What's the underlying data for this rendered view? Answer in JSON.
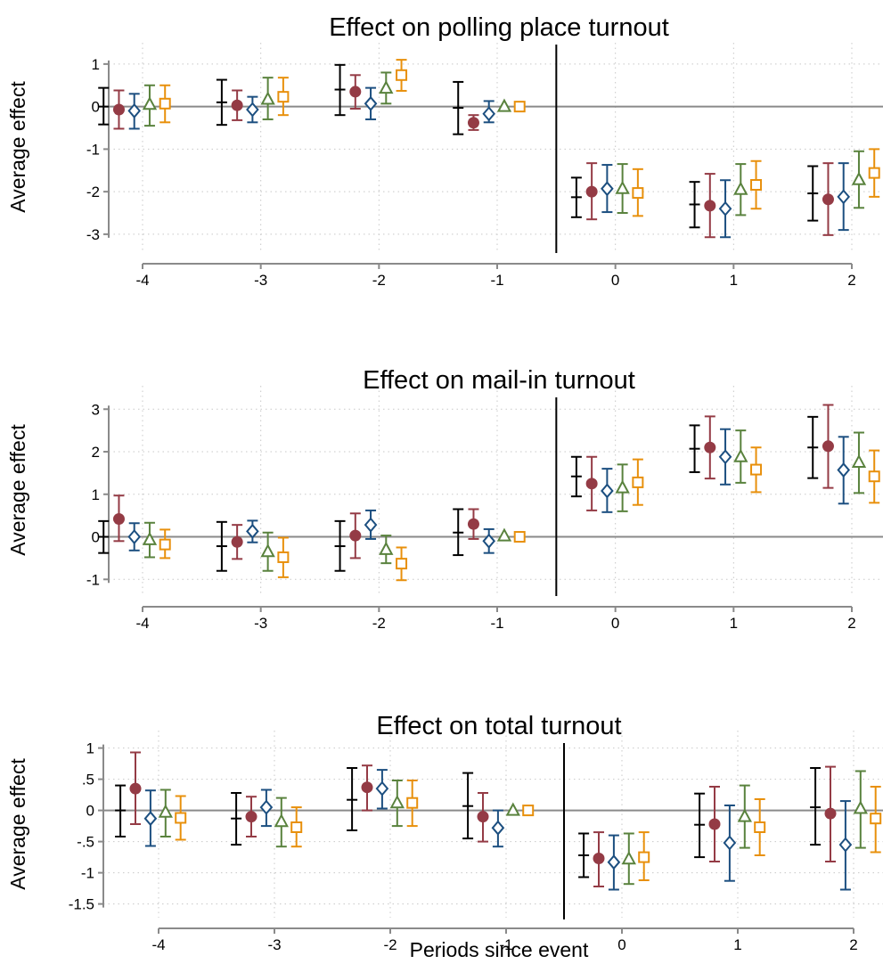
{
  "xlabel": "Periods since event",
  "series_styles": [
    {
      "color": "#000000",
      "marker": "hline"
    },
    {
      "color": "#943b45",
      "marker": "circle"
    },
    {
      "color": "#1c4f80",
      "marker": "diamond"
    },
    {
      "color": "#59823d",
      "marker": "triangle"
    },
    {
      "color": "#e8900c",
      "marker": "square"
    }
  ],
  "chart_data": [
    {
      "type": "scatter",
      "title": "Effect on polling place turnout",
      "ylabel": "Average effect",
      "xlabel": "",
      "x_ticks": [
        -4,
        -3,
        -2,
        -1,
        0,
        1,
        2
      ],
      "y_ticks": [
        1,
        0,
        -1,
        -2,
        -3
      ],
      "y_tick_labels": [
        "1",
        "0",
        "-1",
        "-2",
        "-3"
      ],
      "ylim": [
        -3.4,
        1.5
      ],
      "event_line_x": -0.5,
      "series_offsets": [
        -0.33,
        -0.2,
        -0.07,
        0.06,
        0.19
      ],
      "estimates": [
        [
          0.0,
          0.1,
          0.4,
          -0.03,
          -2.13,
          -2.3,
          -2.04
        ],
        [
          -0.07,
          0.03,
          0.35,
          -0.38,
          -2.0,
          -2.33,
          -2.18
        ],
        [
          -0.1,
          -0.07,
          0.07,
          -0.17,
          -1.93,
          -2.4,
          -2.12
        ],
        [
          0.05,
          0.17,
          0.43,
          0.0,
          -1.93,
          -1.95,
          -1.72
        ],
        [
          0.07,
          0.23,
          0.74,
          0.0,
          -2.03,
          -1.84,
          -1.56
        ]
      ],
      "ci_lower": [
        [
          -0.42,
          -0.43,
          -0.2,
          -0.65,
          -2.6,
          -2.84,
          -2.68
        ],
        [
          -0.52,
          -0.32,
          -0.05,
          -0.55,
          -2.65,
          -3.07,
          -3.02
        ],
        [
          -0.52,
          -0.37,
          -0.3,
          -0.37,
          -2.48,
          -3.07,
          -2.9
        ],
        [
          -0.45,
          -0.3,
          0.07,
          0.0,
          -2.5,
          -2.55,
          -2.38
        ],
        [
          -0.37,
          -0.2,
          0.37,
          0.0,
          -2.57,
          -2.4,
          -2.12
        ]
      ],
      "ci_upper": [
        [
          0.44,
          0.63,
          0.98,
          0.58,
          -1.67,
          -1.77,
          -1.4
        ],
        [
          0.38,
          0.38,
          0.74,
          -0.2,
          -1.33,
          -1.58,
          -1.33
        ],
        [
          0.3,
          0.23,
          0.44,
          0.13,
          -1.37,
          -1.73,
          -1.33
        ],
        [
          0.5,
          0.68,
          0.8,
          0.0,
          -1.35,
          -1.35,
          -1.05
        ],
        [
          0.5,
          0.68,
          1.1,
          0.0,
          -1.47,
          -1.28,
          -1.0
        ]
      ]
    },
    {
      "type": "scatter",
      "title": "Effect on mail-in turnout",
      "ylabel": "Average effect",
      "xlabel": "",
      "x_ticks": [
        -4,
        -3,
        -2,
        -1,
        0,
        1,
        2
      ],
      "y_ticks": [
        3,
        2,
        1,
        0,
        -1
      ],
      "y_tick_labels": [
        "3",
        "2",
        "1",
        "0",
        "-1"
      ],
      "ylim": [
        -1.35,
        3.55
      ],
      "event_line_x": -0.5,
      "series_offsets": [
        -0.33,
        -0.2,
        -0.07,
        0.06,
        0.19
      ],
      "estimates": [
        [
          0.0,
          -0.22,
          -0.22,
          0.1,
          1.42,
          2.07,
          2.1
        ],
        [
          0.42,
          -0.12,
          0.03,
          0.3,
          1.25,
          2.1,
          2.13
        ],
        [
          0.0,
          0.13,
          0.28,
          -0.1,
          1.08,
          1.88,
          1.57
        ],
        [
          -0.07,
          -0.35,
          -0.3,
          0.02,
          1.15,
          1.88,
          1.75
        ],
        [
          -0.18,
          -0.48,
          -0.63,
          0.0,
          1.28,
          1.58,
          1.42
        ]
      ],
      "ci_lower": [
        [
          -0.38,
          -0.8,
          -0.8,
          -0.43,
          0.95,
          1.52,
          1.38
        ],
        [
          -0.1,
          -0.52,
          -0.5,
          -0.05,
          0.62,
          1.37,
          1.15
        ],
        [
          -0.32,
          -0.13,
          -0.05,
          -0.38,
          0.58,
          1.23,
          0.78
        ],
        [
          -0.48,
          -0.8,
          -0.62,
          0.02,
          0.6,
          1.27,
          1.03
        ],
        [
          -0.5,
          -0.95,
          -1.02,
          0.0,
          0.75,
          1.05,
          0.8
        ]
      ],
      "ci_upper": [
        [
          0.37,
          0.35,
          0.37,
          0.65,
          1.88,
          2.62,
          2.82
        ],
        [
          0.97,
          0.28,
          0.55,
          0.65,
          1.88,
          2.83,
          3.1
        ],
        [
          0.32,
          0.38,
          0.62,
          0.18,
          1.6,
          2.53,
          2.35
        ],
        [
          0.33,
          0.1,
          0.03,
          0.02,
          1.7,
          2.5,
          2.45
        ],
        [
          0.17,
          -0.02,
          -0.25,
          0.0,
          1.82,
          2.1,
          2.03
        ]
      ]
    },
    {
      "type": "scatter",
      "title": "Effect on total turnout",
      "ylabel": "Average effect",
      "xlabel": "Periods since event",
      "x_ticks": [
        -4,
        -3,
        -2,
        -1,
        0,
        1,
        2
      ],
      "y_ticks": [
        1,
        0.5,
        0,
        -0.5,
        -1,
        -1.5
      ],
      "y_tick_labels": [
        "1",
        ".5",
        "0",
        "-.5",
        "-1",
        "-1.5"
      ],
      "ylim": [
        -1.72,
        1.28
      ],
      "event_line_x": -0.5,
      "series_offsets": [
        -0.33,
        -0.2,
        -0.07,
        0.06,
        0.19
      ],
      "estimates": [
        [
          0.0,
          -0.13,
          0.17,
          0.07,
          -0.72,
          -0.23,
          0.05
        ],
        [
          0.35,
          -0.1,
          0.37,
          -0.1,
          -0.77,
          -0.22,
          -0.05
        ],
        [
          -0.13,
          0.05,
          0.35,
          -0.28,
          -0.83,
          -0.52,
          -0.55
        ],
        [
          -0.03,
          -0.18,
          0.12,
          0.0,
          -0.78,
          -0.1,
          0.03
        ],
        [
          -0.12,
          -0.27,
          0.12,
          0.0,
          -0.75,
          -0.27,
          -0.13
        ]
      ],
      "ci_lower": [
        [
          -0.42,
          -0.55,
          -0.32,
          -0.45,
          -1.07,
          -0.75,
          -0.55
        ],
        [
          -0.22,
          -0.42,
          0.0,
          -0.5,
          -1.22,
          -0.82,
          -0.82
        ],
        [
          -0.57,
          -0.25,
          0.03,
          -0.58,
          -1.27,
          -1.13,
          -1.27
        ],
        [
          -0.42,
          -0.58,
          -0.25,
          0.0,
          -1.18,
          -0.6,
          -0.6
        ],
        [
          -0.47,
          -0.58,
          -0.25,
          0.0,
          -1.12,
          -0.72,
          -0.67
        ]
      ],
      "ci_upper": [
        [
          0.4,
          0.28,
          0.68,
          0.6,
          -0.37,
          0.27,
          0.68
        ],
        [
          0.93,
          0.22,
          0.72,
          0.28,
          -0.35,
          0.38,
          0.7
        ],
        [
          0.32,
          0.33,
          0.65,
          0.0,
          -0.4,
          0.08,
          0.15
        ],
        [
          0.33,
          0.2,
          0.48,
          0.0,
          -0.37,
          0.4,
          0.63
        ],
        [
          0.23,
          0.05,
          0.48,
          0.0,
          -0.35,
          0.18,
          0.38
        ]
      ]
    }
  ]
}
